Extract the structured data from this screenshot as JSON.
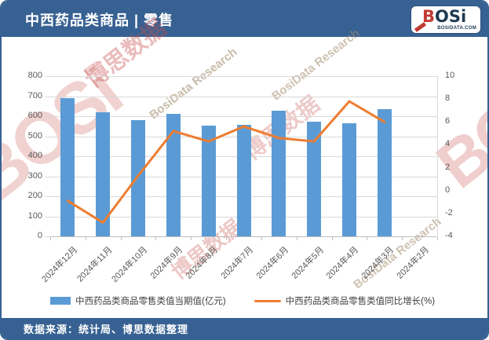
{
  "header": {
    "title": "中西药品类商品 | 零售",
    "logo": {
      "b": "B",
      "rest": "OSi",
      "domain": "BOSIDATA.COM"
    }
  },
  "footer": {
    "source": "数据来源：统计局、博思数据整理"
  },
  "watermark": {
    "brand": "BOSi",
    "cn": "博思数据",
    "en": "BosiData Research"
  },
  "colors": {
    "frame": "#376192",
    "bar": "#5b9bd5",
    "line": "#ed7d31",
    "grid": "#d9d9d9",
    "axis_text": "#595959"
  },
  "chart_data": {
    "type": "bar",
    "title": "中西药品类商品 | 零售",
    "categories": [
      "2024年12月",
      "2024年11月",
      "2024年10月",
      "2024年9月",
      "2024年8月",
      "2024年7月",
      "2024年6月",
      "2024年5月",
      "2024年4月",
      "2024年3月",
      "2024年2月"
    ],
    "series": [
      {
        "name": "中西药品类商品零售类值当期值(亿元)",
        "kind": "bar",
        "axis": "left",
        "color": "#5b9bd5",
        "values": [
          690,
          620,
          580,
          612,
          553,
          556,
          626,
          574,
          566,
          635,
          null
        ]
      },
      {
        "name": "中西药品类商品零售类值同比增长(%)",
        "kind": "line",
        "axis": "right",
        "color": "#ed7d31",
        "values": [
          -0.9,
          -2.8,
          1.3,
          5.2,
          4.3,
          5.6,
          4.6,
          4.3,
          7.8,
          6.0,
          null
        ]
      }
    ],
    "left_axis": {
      "min": 0,
      "max": 800,
      "step": 100
    },
    "right_axis": {
      "min": -4,
      "max": 10,
      "step": 2
    },
    "grid": true,
    "legend_position": "bottom"
  }
}
